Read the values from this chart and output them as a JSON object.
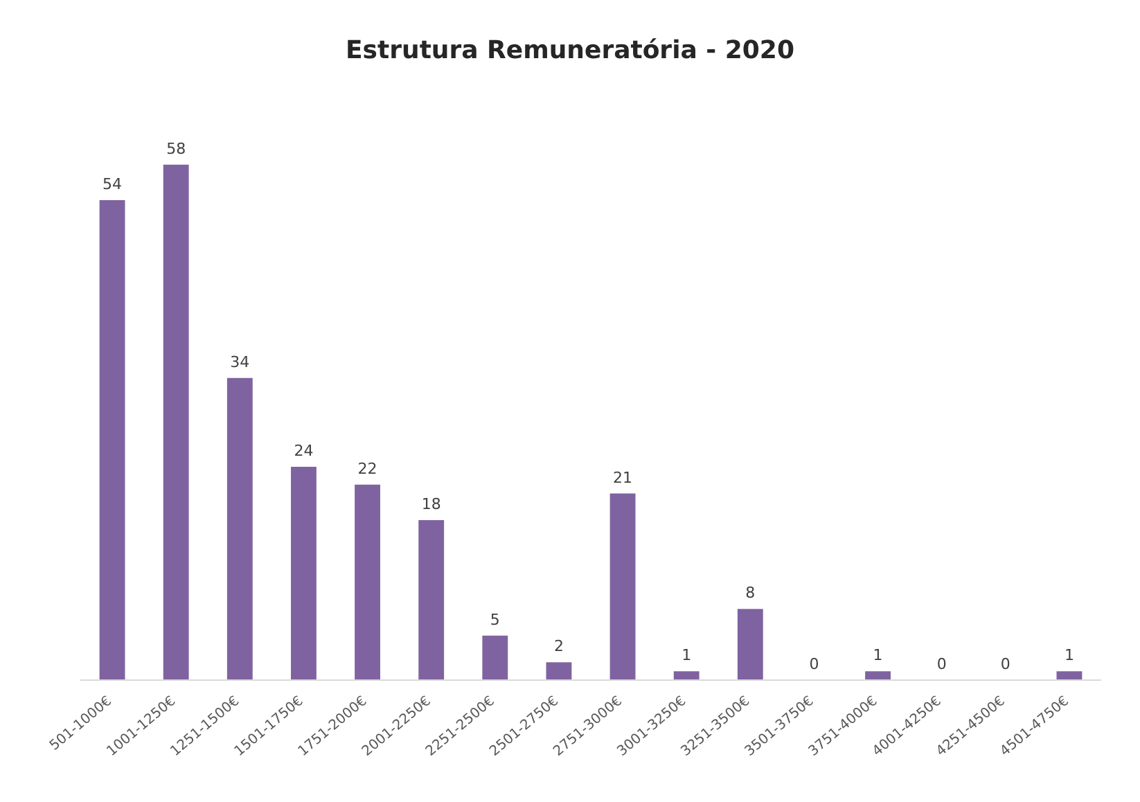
{
  "chart_data": {
    "type": "bar",
    "title": "Estrutura Remuneratória - 2020",
    "categories": [
      "501-1000€",
      "1001-1250€",
      "1251-1500€",
      "1501-1750€",
      "1751-2000€",
      "2001-2250€",
      "2251-2500€",
      "2501-2750€",
      "2751-3000€",
      "3001-3250€",
      "3251-3500€",
      "3501-3750€",
      "3751-4000€",
      "4001-4250€",
      "4251-4500€",
      "4501-4750€"
    ],
    "values": [
      54,
      58,
      34,
      24,
      22,
      18,
      5,
      2,
      21,
      1,
      8,
      0,
      1,
      0,
      0,
      1
    ],
    "color": "#7f63a1",
    "data_labels": true,
    "grid": false
  }
}
